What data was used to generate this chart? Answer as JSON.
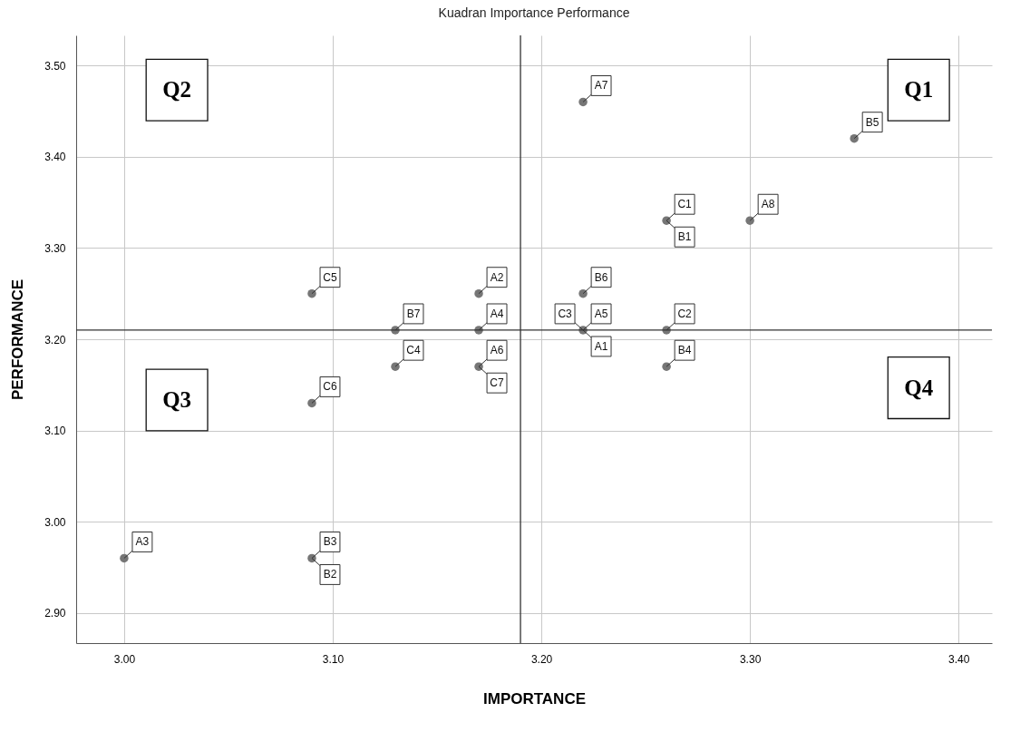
{
  "chart_data": {
    "type": "scatter",
    "title": "Kuadran Importance Performance",
    "xlabel": "IMPORTANCE",
    "ylabel": "PERFORMANCE",
    "x": [
      3.0,
      3.09,
      3.09,
      3.09,
      3.13,
      3.13,
      3.17,
      3.17,
      3.17,
      3.22,
      3.22,
      3.22,
      3.26,
      3.26,
      3.26,
      3.3,
      3.35
    ],
    "series": [
      {
        "color": "#767676",
        "values": [
          2.96,
          2.96,
          3.25,
          3.13,
          3.21,
          3.17,
          3.25,
          3.21,
          3.17,
          3.46,
          3.25,
          3.21,
          3.33,
          3.21,
          3.17,
          3.33,
          3.42
        ]
      }
    ],
    "marker": "circle",
    "grid": true,
    "xlim": [
      2.977,
      3.416
    ],
    "xticks": [
      {
        "value": 3.0,
        "label": "3.00"
      },
      {
        "value": 3.1,
        "label": "3.10"
      },
      {
        "value": 3.2,
        "label": "3.20"
      },
      {
        "value": 3.3,
        "label": "3.30"
      },
      {
        "value": 3.4,
        "label": "3.40"
      }
    ],
    "ylim": [
      2.867,
      3.533
    ],
    "yticks": [
      {
        "value": 2.9,
        "label": "2.90"
      },
      {
        "value": 3.0,
        "label": "3.00"
      },
      {
        "value": 3.1,
        "label": "3.10"
      },
      {
        "value": 3.2,
        "label": "3.20"
      },
      {
        "value": 3.3,
        "label": "3.30"
      },
      {
        "value": 3.4,
        "label": "3.40"
      },
      {
        "value": 3.5,
        "label": "3.50"
      }
    ],
    "ref_lines": [
      {
        "axis": "x",
        "value": 3.19,
        "color": "#333333"
      },
      {
        "axis": "y",
        "value": 3.21,
        "color": "#333333"
      }
    ],
    "annotations": [
      "Q1",
      "Q2",
      "Q3",
      "Q4",
      {
        "text": "A3",
        "x": 3.0,
        "y": 2.96
      },
      {
        "text": "B3",
        "x": 3.09,
        "y": 2.96
      },
      {
        "text": "B2",
        "x": 3.09,
        "y": 2.96
      },
      {
        "text": "C5",
        "x": 3.09,
        "y": 3.25
      },
      {
        "text": "C6",
        "x": 3.09,
        "y": 3.13
      },
      {
        "text": "B7",
        "x": 3.13,
        "y": 3.21
      },
      {
        "text": "C4",
        "x": 3.13,
        "y": 3.17
      },
      {
        "text": "A2",
        "x": 3.17,
        "y": 3.25
      },
      {
        "text": "A4",
        "x": 3.17,
        "y": 3.21
      },
      {
        "text": "A6",
        "x": 3.17,
        "y": 3.17
      },
      {
        "text": "C7",
        "x": 3.17,
        "y": 3.17
      },
      {
        "text": "A7",
        "x": 3.22,
        "y": 3.46
      },
      {
        "text": "B6",
        "x": 3.22,
        "y": 3.25
      },
      {
        "text": "A5",
        "x": 3.22,
        "y": 3.21
      },
      {
        "text": "A1",
        "x": 3.22,
        "y": 3.21
      },
      {
        "text": "C3",
        "x": 3.22,
        "y": 3.21
      },
      {
        "text": "C1",
        "x": 3.26,
        "y": 3.33
      },
      {
        "text": "B1",
        "x": 3.26,
        "y": 3.33
      },
      {
        "text": "C2",
        "x": 3.26,
        "y": 3.21
      },
      {
        "text": "B4",
        "x": 3.26,
        "y": 3.17
      },
      {
        "text": "A8",
        "x": 3.3,
        "y": 3.33
      },
      {
        "text": "B5",
        "x": 3.35,
        "y": 3.42
      }
    ]
  }
}
